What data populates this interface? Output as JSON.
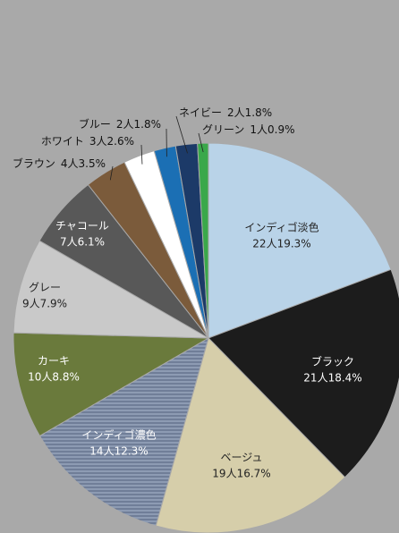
{
  "chart_data": {
    "type": "pie",
    "categories": [
      "インディゴ淡色",
      "ブラック",
      "ベージュ",
      "インディゴ濃色",
      "カーキ",
      "グレー",
      "チャコール",
      "ブラウン",
      "ホワイト",
      "ブルー",
      "ネイビー",
      "グリーン"
    ],
    "values": [
      19.3,
      18.4,
      16.7,
      12.3,
      8.8,
      7.9,
      6.1,
      3.5,
      2.6,
      1.8,
      1.8,
      0.9
    ],
    "value_labels": [
      "22人19.3%",
      "21人18.4%",
      "19人16.7%",
      "14人12.3%",
      "10人8.8%",
      "9人7.9%",
      "7人6.1%",
      "4人3.5%",
      "3人2.6%",
      "2人1.8%",
      "2人1.8%",
      "1人0.9%"
    ],
    "colors": [
      "#b9d3e8",
      "#1c1c1c",
      "#d6ceaa",
      "#8d9bb3",
      "#6a7a3c",
      "#c9c9c9",
      "#585858",
      "#7b5b3b",
      "#ffffff",
      "#1b6fb4",
      "#1c3a68",
      "#3aa84a"
    ]
  }
}
